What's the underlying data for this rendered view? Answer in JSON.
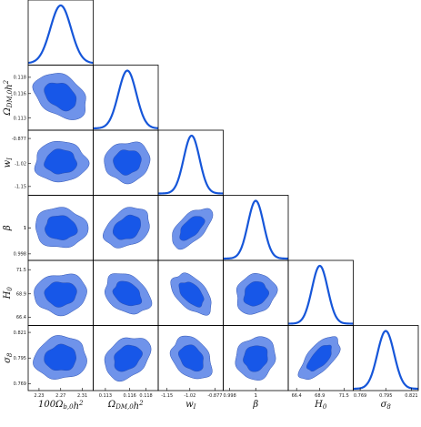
{
  "chart_data": {
    "type": "triangle-corner",
    "colors": {
      "line": "#1656d9",
      "inner": "#1757e8",
      "outer": "#6f93ea",
      "edge": "#2a4fb0"
    },
    "params": [
      {
        "label": "100Ω_{b,0}h²",
        "ticks": [
          "2.23",
          "2.27",
          "2.31"
        ],
        "range": [
          2.21,
          2.33
        ],
        "mean": 2.27,
        "sigma": 0.019
      },
      {
        "label": "Ω_{DM,0}h²",
        "ticks": [
          "0.113",
          "0.116",
          "0.118"
        ],
        "range": [
          0.1115,
          0.1195
        ],
        "mean": 0.1157,
        "sigma": 0.0011
      },
      {
        "label": "w_I",
        "ticks": [
          "-1.15",
          "-1.02",
          "-0.877"
        ],
        "range": [
          -1.2,
          -0.83
        ],
        "mean": -1.01,
        "sigma": 0.045
      },
      {
        "label": "β",
        "ticks": [
          "0.998",
          "1",
          "1"
        ],
        "range": [
          0.9975,
          1.0025
        ],
        "mean": 1.0,
        "sigma": 0.0006
      },
      {
        "label": "H_0",
        "ticks": [
          "66.4",
          "68.9",
          "71.5"
        ],
        "range": [
          65.5,
          72.5
        ],
        "mean": 68.9,
        "sigma": 0.85
      },
      {
        "label": "σ_8",
        "ticks": [
          "0.769",
          "0.795",
          "0.821"
        ],
        "range": [
          0.762,
          0.828
        ],
        "mean": 0.795,
        "sigma": 0.0085
      }
    ],
    "correlations": {
      "1-0": -0.35,
      "2-0": 0.0,
      "2-1": 0.05,
      "3-0": -0.05,
      "3-1": 0.3,
      "3-2": 0.6,
      "4-0": 0.05,
      "4-1": -0.3,
      "4-2": -0.5,
      "4-3": 0.15,
      "5-0": 0.05,
      "5-1": 0.3,
      "5-2": -0.3,
      "5-3": 0.1,
      "5-4": 0.65
    }
  }
}
